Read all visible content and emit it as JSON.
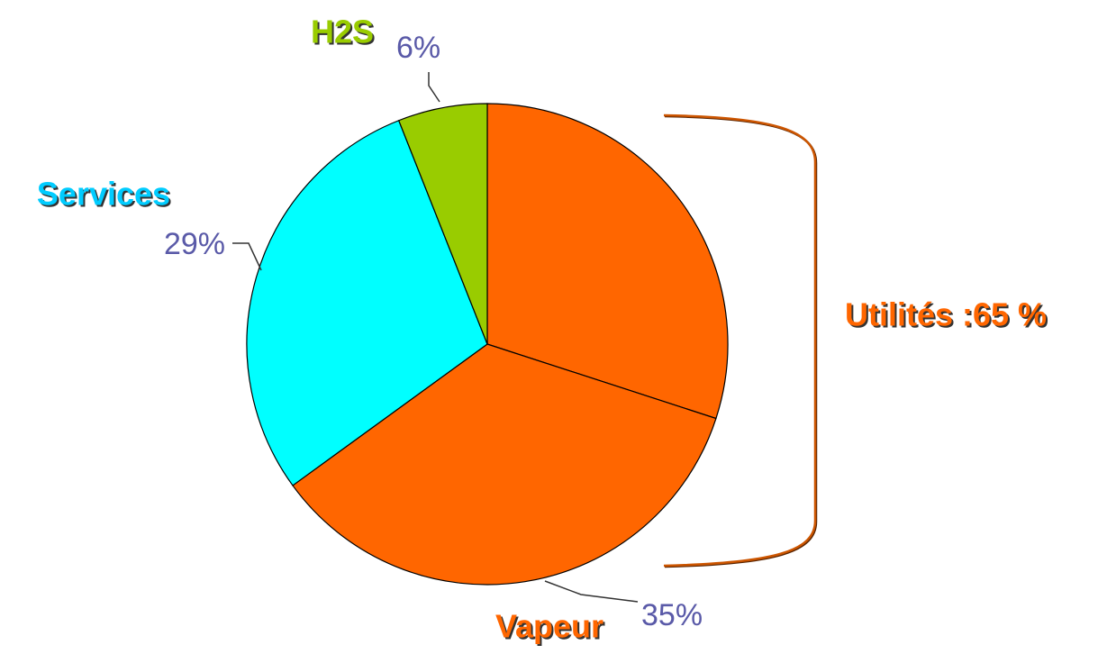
{
  "chart_data": {
    "type": "pie",
    "categories": [
      null,
      "Vapeur",
      "Services",
      "H2S"
    ],
    "values": [
      30,
      35,
      29,
      6
    ],
    "value_labels": [
      null,
      "35%",
      "29%",
      "6%"
    ],
    "colors": [
      "#ff6600",
      "#ff6600",
      "#00ffff",
      "#99cc00"
    ],
    "label_colors": [
      null,
      "#ff6600",
      "#00ccff",
      "#99cc00"
    ],
    "start_angle": 0,
    "direction": "clockwise",
    "annotation": "Utilités :65 %"
  }
}
